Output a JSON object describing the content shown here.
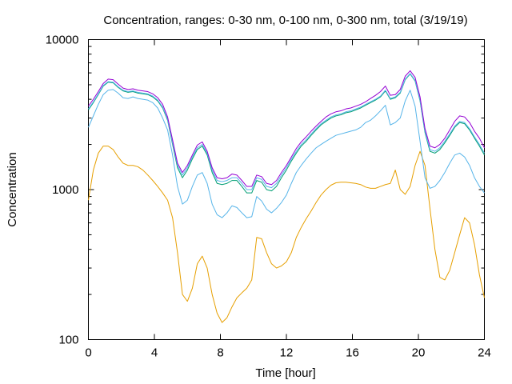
{
  "chart_data": {
    "type": "line",
    "title": "Concentration, ranges: 0-30 nm, 0-100 nm, 0-300 nm, total (3/19/19)",
    "xlabel": "Time [hour]",
    "ylabel": "Concentration",
    "xlim": [
      0,
      24
    ],
    "ylim": [
      100,
      10000
    ],
    "yscale": "log",
    "grid": false,
    "legend": "none",
    "x_ticks": [
      "0",
      "4",
      "8",
      "12",
      "16",
      "20",
      "24"
    ],
    "x_tick_values": [
      0,
      4,
      8,
      12,
      16,
      20,
      24
    ],
    "y_ticks": [
      "100",
      "1000",
      "10000"
    ],
    "y_tick_values": [
      100,
      1000,
      10000
    ],
    "series": [
      {
        "color": "#E69F00",
        "x": [
          0,
          0.3,
          0.6,
          0.9,
          1.2,
          1.5,
          1.8,
          2.1,
          2.4,
          2.7,
          3,
          3.3,
          3.6,
          3.9,
          4.2,
          4.5,
          4.8,
          5.1,
          5.4,
          5.7,
          6,
          6.3,
          6.6,
          6.9,
          7.2,
          7.5,
          7.8,
          8.1,
          8.4,
          8.7,
          9,
          9.3,
          9.6,
          9.9,
          10.2,
          10.5,
          10.8,
          11.1,
          11.4,
          11.7,
          12,
          12.3,
          12.6,
          12.9,
          13.2,
          13.5,
          13.8,
          14.1,
          14.4,
          14.7,
          15,
          15.3,
          15.6,
          15.9,
          16.2,
          16.5,
          16.8,
          17.1,
          17.4,
          17.7,
          18,
          18.3,
          18.6,
          18.9,
          19.2,
          19.5,
          19.8,
          20.1,
          20.4,
          20.7,
          21,
          21.3,
          21.6,
          21.9,
          22.2,
          22.5,
          22.8,
          23.1,
          23.4,
          23.7,
          24
        ],
        "y": [
          850,
          1350,
          1750,
          1950,
          1950,
          1850,
          1650,
          1500,
          1450,
          1450,
          1420,
          1350,
          1250,
          1150,
          1050,
          950,
          850,
          650,
          380,
          200,
          180,
          220,
          320,
          360,
          300,
          200,
          150,
          130,
          140,
          165,
          190,
          205,
          220,
          250,
          480,
          470,
          380,
          320,
          300,
          310,
          330,
          380,
          480,
          560,
          640,
          720,
          820,
          920,
          1000,
          1070,
          1110,
          1120,
          1120,
          1110,
          1100,
          1080,
          1040,
          1020,
          1020,
          1050,
          1080,
          1100,
          1350,
          1000,
          930,
          1050,
          1450,
          1800,
          1450,
          750,
          400,
          260,
          250,
          290,
          380,
          500,
          650,
          600,
          430,
          270,
          190
        ]
      },
      {
        "color": "#56B4E9",
        "x": [
          0,
          0.3,
          0.6,
          0.9,
          1.2,
          1.5,
          1.8,
          2.1,
          2.4,
          2.7,
          3,
          3.3,
          3.6,
          3.9,
          4.2,
          4.5,
          4.8,
          5.1,
          5.4,
          5.7,
          6,
          6.3,
          6.6,
          6.9,
          7.2,
          7.5,
          7.8,
          8.1,
          8.4,
          8.7,
          9,
          9.3,
          9.6,
          9.9,
          10.2,
          10.5,
          10.8,
          11.1,
          11.4,
          11.7,
          12,
          12.3,
          12.6,
          12.9,
          13.2,
          13.5,
          13.8,
          14.1,
          14.4,
          14.7,
          15,
          15.3,
          15.6,
          15.9,
          16.2,
          16.5,
          16.8,
          17.1,
          17.4,
          17.7,
          18,
          18.3,
          18.6,
          18.9,
          19.2,
          19.5,
          19.8,
          20.1,
          20.4,
          20.7,
          21,
          21.3,
          21.6,
          21.9,
          22.2,
          22.5,
          22.8,
          23.1,
          23.4,
          23.7,
          24
        ],
        "y": [
          2600,
          3100,
          3700,
          4300,
          4600,
          4650,
          4400,
          4100,
          4050,
          4150,
          4050,
          4000,
          3950,
          3800,
          3500,
          3000,
          2500,
          1700,
          1050,
          800,
          850,
          1050,
          1250,
          1300,
          1100,
          800,
          680,
          650,
          700,
          780,
          760,
          700,
          650,
          660,
          900,
          840,
          740,
          700,
          750,
          820,
          920,
          1100,
          1300,
          1450,
          1600,
          1750,
          1900,
          2000,
          2100,
          2200,
          2300,
          2350,
          2400,
          2450,
          2500,
          2600,
          2800,
          2900,
          3100,
          3350,
          3650,
          2700,
          2800,
          3000,
          3900,
          4600,
          3600,
          2100,
          1200,
          1020,
          1050,
          1150,
          1300,
          1500,
          1700,
          1750,
          1650,
          1450,
          1200,
          1050,
          950
        ]
      },
      {
        "color": "#009E73",
        "x": [
          0,
          0.3,
          0.6,
          0.9,
          1.2,
          1.5,
          1.8,
          2.1,
          2.4,
          2.7,
          3,
          3.3,
          3.6,
          3.9,
          4.2,
          4.5,
          4.8,
          5.1,
          5.4,
          5.7,
          6,
          6.3,
          6.6,
          6.9,
          7.2,
          7.5,
          7.8,
          8.1,
          8.4,
          8.7,
          9,
          9.3,
          9.6,
          9.9,
          10.2,
          10.5,
          10.8,
          11.1,
          11.4,
          11.7,
          12,
          12.3,
          12.6,
          12.9,
          13.2,
          13.5,
          13.8,
          14.1,
          14.4,
          14.7,
          15,
          15.3,
          15.6,
          15.9,
          16.2,
          16.5,
          16.8,
          17.1,
          17.4,
          17.7,
          18,
          18.3,
          18.6,
          18.9,
          19.2,
          19.5,
          19.8,
          20.1,
          20.4,
          20.7,
          21,
          21.3,
          21.6,
          21.9,
          22.2,
          22.5,
          22.8,
          23.1,
          23.4,
          23.7,
          24
        ],
        "y": [
          3400,
          3800,
          4300,
          4900,
          5200,
          5150,
          4800,
          4550,
          4450,
          4500,
          4400,
          4350,
          4300,
          4150,
          3900,
          3500,
          2900,
          2000,
          1400,
          1200,
          1350,
          1600,
          1850,
          1950,
          1700,
          1300,
          1100,
          1080,
          1100,
          1150,
          1150,
          1050,
          950,
          950,
          1150,
          1120,
          1000,
          980,
          1050,
          1200,
          1350,
          1550,
          1750,
          1950,
          2100,
          2300,
          2500,
          2700,
          2850,
          3000,
          3100,
          3150,
          3250,
          3300,
          3400,
          3500,
          3650,
          3800,
          3950,
          4150,
          4550,
          4000,
          4100,
          4400,
          5400,
          5900,
          5300,
          3900,
          2400,
          1800,
          1750,
          1850,
          2050,
          2300,
          2600,
          2800,
          2750,
          2500,
          2200,
          1950,
          1700
        ]
      },
      {
        "color": "#56B4E9",
        "x": [
          0,
          0.3,
          0.6,
          0.9,
          1.2,
          1.5,
          1.8,
          2.1,
          2.4,
          2.7,
          3,
          3.3,
          3.6,
          3.9,
          4.2,
          4.5,
          4.8,
          5.1,
          5.4,
          5.7,
          6,
          6.3,
          6.6,
          6.9,
          7.2,
          7.5,
          7.8,
          8.1,
          8.4,
          8.7,
          9,
          9.3,
          9.6,
          9.9,
          10.2,
          10.5,
          10.8,
          11.1,
          11.4,
          11.7,
          12,
          12.3,
          12.6,
          12.9,
          13.2,
          13.5,
          13.8,
          14.1,
          14.4,
          14.7,
          15,
          15.3,
          15.6,
          15.9,
          16.2,
          16.5,
          16.8,
          17.1,
          17.4,
          17.7,
          18,
          18.3,
          18.6,
          18.9,
          19.2,
          19.5,
          19.8,
          20.1,
          20.4,
          20.7,
          21,
          21.3,
          21.6,
          21.9,
          22.2,
          22.5,
          22.8,
          23.1,
          23.4,
          23.7,
          24
        ],
        "y": [
          3450,
          3850,
          4350,
          4950,
          5250,
          5200,
          4850,
          4600,
          4500,
          4550,
          4450,
          4400,
          4350,
          4200,
          3950,
          3550,
          2950,
          2050,
          1450,
          1250,
          1400,
          1650,
          1900,
          2000,
          1750,
          1350,
          1150,
          1130,
          1150,
          1200,
          1200,
          1100,
          1000,
          1000,
          1200,
          1170,
          1050,
          1030,
          1100,
          1250,
          1400,
          1600,
          1800,
          2000,
          2150,
          2350,
          2550,
          2750,
          2900,
          3050,
          3150,
          3200,
          3300,
          3350,
          3450,
          3550,
          3700,
          3850,
          4000,
          4200,
          4600,
          4050,
          4150,
          4450,
          5450,
          5950,
          5350,
          3950,
          2450,
          1850,
          1800,
          1900,
          2100,
          2350,
          2650,
          2850,
          2800,
          2550,
          2250,
          2000,
          1750
        ]
      },
      {
        "color": "#9400D3",
        "x": [
          0,
          0.3,
          0.6,
          0.9,
          1.2,
          1.5,
          1.8,
          2.1,
          2.4,
          2.7,
          3,
          3.3,
          3.6,
          3.9,
          4.2,
          4.5,
          4.8,
          5.1,
          5.4,
          5.7,
          6,
          6.3,
          6.6,
          6.9,
          7.2,
          7.5,
          7.8,
          8.1,
          8.4,
          8.7,
          9,
          9.3,
          9.6,
          9.9,
          10.2,
          10.5,
          10.8,
          11.1,
          11.4,
          11.7,
          12,
          12.3,
          12.6,
          12.9,
          13.2,
          13.5,
          13.8,
          14.1,
          14.4,
          14.7,
          15,
          15.3,
          15.6,
          15.9,
          16.2,
          16.5,
          16.8,
          17.1,
          17.4,
          17.7,
          18,
          18.3,
          18.6,
          18.9,
          19.2,
          19.5,
          19.8,
          20.1,
          20.4,
          20.7,
          21,
          21.3,
          21.6,
          21.9,
          22.2,
          22.5,
          22.8,
          23.1,
          23.4,
          23.7,
          24
        ],
        "y": [
          3600,
          4000,
          4500,
          5100,
          5450,
          5400,
          5050,
          4750,
          4650,
          4700,
          4600,
          4550,
          4500,
          4350,
          4100,
          3700,
          3050,
          2150,
          1500,
          1300,
          1450,
          1700,
          1980,
          2080,
          1800,
          1400,
          1200,
          1180,
          1200,
          1270,
          1250,
          1150,
          1050,
          1050,
          1250,
          1220,
          1100,
          1080,
          1150,
          1300,
          1450,
          1650,
          1880,
          2080,
          2250,
          2450,
          2650,
          2850,
          3050,
          3200,
          3300,
          3350,
          3450,
          3500,
          3600,
          3700,
          3850,
          4050,
          4250,
          4500,
          4900,
          4250,
          4300,
          4650,
          5700,
          6200,
          5600,
          4150,
          2550,
          1950,
          1900,
          2000,
          2200,
          2500,
          2850,
          3100,
          3050,
          2800,
          2450,
          2200,
          1900
        ]
      }
    ]
  }
}
